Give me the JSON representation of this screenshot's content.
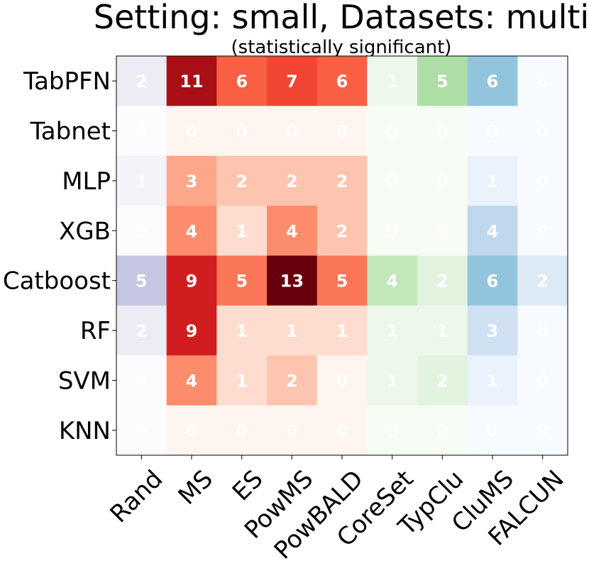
{
  "chart_data": {
    "type": "heatmap",
    "title": "Setting: small, Datasets: multi",
    "subtitle": "(statistically significant)",
    "rows": [
      "TabPFN",
      "Tabnet",
      "MLP",
      "XGB",
      "Catboost",
      "RF",
      "SVM",
      "KNN"
    ],
    "columns": [
      "Rand",
      "MS",
      "ES",
      "PowMS",
      "PowBALD",
      "CoreSet",
      "TypClu",
      "CluMS",
      "FALCUN"
    ],
    "column_colormap": [
      "Purples",
      "Reds",
      "Reds",
      "Reds",
      "Reds",
      "Greens",
      "Greens",
      "Blues",
      "Blues"
    ],
    "values": [
      [
        2,
        11,
        6,
        7,
        6,
        1,
        5,
        6,
        0
      ],
      [
        0,
        0,
        0,
        0,
        0,
        0,
        0,
        0,
        0
      ],
      [
        1,
        3,
        2,
        2,
        2,
        0,
        0,
        1,
        0
      ],
      [
        0,
        4,
        1,
        4,
        2,
        0,
        0,
        4,
        0
      ],
      [
        5,
        9,
        5,
        13,
        5,
        4,
        2,
        6,
        2
      ],
      [
        2,
        9,
        1,
        1,
        1,
        1,
        1,
        3,
        0
      ],
      [
        0,
        4,
        1,
        2,
        0,
        1,
        2,
        1,
        0
      ],
      [
        0,
        0,
        0,
        0,
        0,
        0,
        0,
        0,
        0
      ]
    ],
    "value_range": [
      0,
      13
    ]
  }
}
